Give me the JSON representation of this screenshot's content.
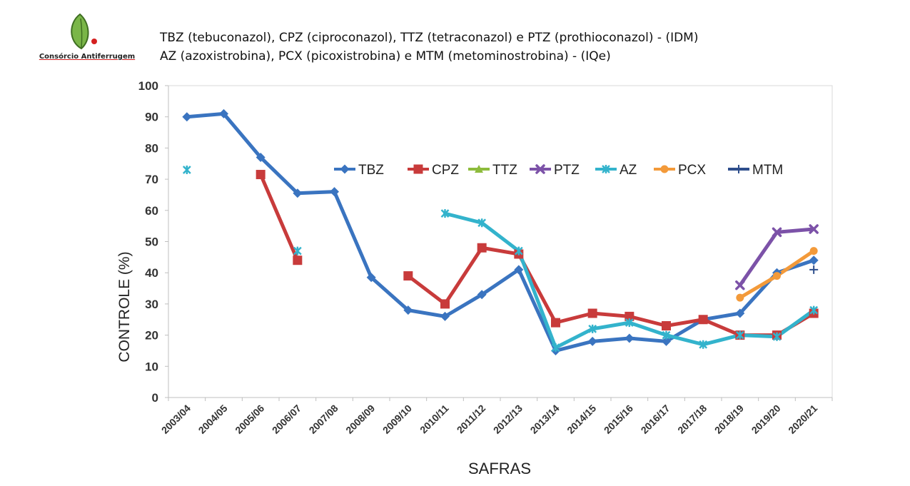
{
  "logo": {
    "text": "Consórcio Antiferrugem"
  },
  "title_lines": [
    "TBZ (tebuconazol), CPZ (ciproconazol), TTZ (tetraconazol) e PTZ (prothioconazol) -  (IDM)",
    "AZ (azoxistrobina), PCX (picoxistrobina) e MTM (metominostrobina) - (IQe)"
  ],
  "chart_data": {
    "type": "line",
    "title": "TBZ (tebuconazol), CPZ (ciproconazol), TTZ (tetraconazol) e PTZ (prothioconazol) -  (IDM) / AZ (azoxistrobina), PCX (picoxistrobina) e MTM (metominostrobina) - (IQe)",
    "xlabel": "SAFRAS",
    "ylabel": "CONTROLE (%)",
    "ylim": [
      0,
      100
    ],
    "yticks": [
      0,
      10,
      20,
      30,
      40,
      50,
      60,
      70,
      80,
      90,
      100
    ],
    "grid": false,
    "legend_position": "top-right inside plot",
    "categories": [
      "2003/04",
      "2004/05",
      "2005/06",
      "2006/07",
      "2007/08",
      "2008/09",
      "2009/10",
      "2010/11",
      "2011/12",
      "2012/13",
      "2013/14",
      "2014/15",
      "2015/16",
      "2016/17",
      "2017/18",
      "2018/19",
      "2019/20",
      "2020/21"
    ],
    "series": [
      {
        "name": "TBZ",
        "color": "#3a74c0",
        "marker": "diamond",
        "values": [
          90,
          91,
          77,
          65.5,
          66,
          38.5,
          28,
          26,
          33,
          41,
          15,
          18,
          19,
          18,
          25,
          27,
          40,
          44
        ]
      },
      {
        "name": "CPZ",
        "color": "#c83b3b",
        "marker": "square",
        "values": [
          null,
          null,
          71.5,
          44,
          null,
          null,
          39,
          30,
          48,
          46,
          24,
          27,
          26,
          23,
          25,
          20,
          20,
          27
        ]
      },
      {
        "name": "TTZ",
        "color": "#8dbb3c",
        "marker": "triangle",
        "values": [
          null,
          null,
          null,
          null,
          null,
          null,
          null,
          null,
          null,
          null,
          null,
          null,
          null,
          null,
          null,
          null,
          null,
          null
        ]
      },
      {
        "name": "PTZ",
        "color": "#7c52a8",
        "marker": "x",
        "values": [
          null,
          null,
          null,
          null,
          null,
          null,
          null,
          null,
          null,
          null,
          null,
          null,
          null,
          null,
          null,
          36,
          53,
          54
        ]
      },
      {
        "name": "AZ",
        "color": "#33b3cc",
        "marker": "star",
        "values": [
          73,
          null,
          null,
          47,
          null,
          null,
          null,
          59,
          56,
          47,
          16,
          22,
          24,
          20,
          17,
          20,
          19.5,
          28
        ]
      },
      {
        "name": "PCX",
        "color": "#f39a3a",
        "marker": "circle",
        "values": [
          null,
          null,
          null,
          null,
          null,
          null,
          null,
          null,
          null,
          null,
          null,
          null,
          null,
          null,
          null,
          32,
          39,
          47
        ]
      },
      {
        "name": "MTM",
        "color": "#2e4e8c",
        "marker": "plus",
        "values": [
          null,
          null,
          null,
          null,
          null,
          null,
          null,
          null,
          null,
          null,
          null,
          null,
          null,
          null,
          null,
          null,
          null,
          41
        ]
      }
    ]
  }
}
